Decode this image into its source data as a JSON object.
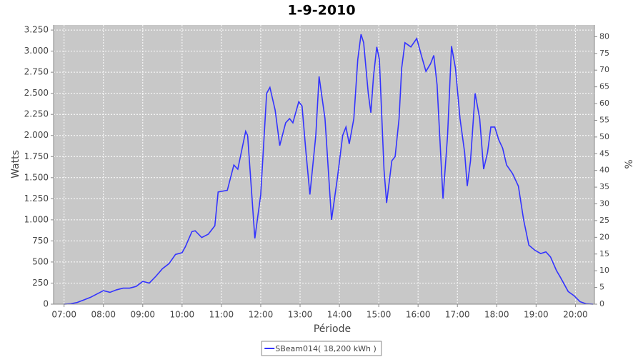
{
  "chart_data": {
    "type": "line",
    "title": "1-9-2010",
    "x_label": "Période",
    "y_label": "Watts",
    "y2_label": "%",
    "xlim": [
      "06:44",
      "20:29"
    ],
    "xticks": [
      "07:00",
      "08:00",
      "09:00",
      "10:00",
      "11:00",
      "12:00",
      "13:00",
      "14:00",
      "15:00",
      "16:00",
      "17:00",
      "18:00",
      "19:00",
      "20:00"
    ],
    "ylim": [
      0,
      3310
    ],
    "yticks": [
      0,
      250,
      500,
      750,
      {
        "value": 1000,
        "label": "1.000"
      },
      {
        "value": 1250,
        "label": "1.250"
      },
      {
        "value": 1500,
        "label": "1.500"
      },
      {
        "value": 1750,
        "label": "1.750"
      },
      {
        "value": 2000,
        "label": "2.000"
      },
      {
        "value": 2250,
        "label": "2.250"
      },
      {
        "value": 2500,
        "label": "2.500"
      },
      {
        "value": 2750,
        "label": "2.750"
      },
      {
        "value": 3000,
        "label": "3.000"
      },
      {
        "value": 3250,
        "label": "3.250"
      }
    ],
    "y2lim": [
      0,
      83.5
    ],
    "y2ticks": [
      0,
      5,
      10,
      15,
      20,
      25,
      30,
      35,
      40,
      45,
      50,
      55,
      60,
      65,
      70,
      75,
      80
    ],
    "grid": true,
    "legend": "bottom",
    "x": [
      "07:00",
      "07:10",
      "07:20",
      "07:30",
      "07:40",
      "07:50",
      "08:00",
      "08:10",
      "08:20",
      "08:30",
      "08:40",
      "08:50",
      "09:00",
      "09:10",
      "09:20",
      "09:30",
      "09:40",
      "09:50",
      "10:00",
      "10:05",
      "10:15",
      "10:20",
      "10:30",
      "10:40",
      "10:50",
      "10:55",
      "11:09",
      "11:19",
      "11:25",
      "11:37",
      "11:40",
      "11:51",
      "12:00",
      "12:09",
      "12:14",
      "12:22",
      "12:29",
      "12:38",
      "12:44",
      "12:49",
      "12:58",
      "13:03",
      "13:09",
      "13:15",
      "13:24",
      "13:29",
      "13:38",
      "13:48",
      "13:57",
      "14:05",
      "14:10",
      "14:15",
      "14:22",
      "14:28",
      "14:33",
      "14:37",
      "14:44",
      "14:48",
      "14:52",
      "14:57",
      "15:01",
      "15:08",
      "15:12",
      "15:20",
      "15:25",
      "15:31",
      "15:35",
      "15:40",
      "15:49",
      "15:58",
      "16:05",
      "16:12",
      "16:19",
      "16:24",
      "16:29",
      "16:35",
      "16:38",
      "16:45",
      "16:51",
      "16:57",
      "17:04",
      "17:11",
      "17:15",
      "17:20",
      "17:27",
      "17:34",
      "17:40",
      "17:46",
      "17:51",
      "17:57",
      "18:03",
      "18:09",
      "18:15",
      "18:24",
      "18:33",
      "18:41",
      "18:49",
      "18:58",
      "19:07",
      "19:15",
      "19:22",
      "19:31",
      "19:37",
      "19:49",
      "19:58",
      "20:07",
      "20:16",
      "20:27"
    ],
    "series": [
      {
        "name": "SBeam014( 18,200 kWh )",
        "color": "#3333ff",
        "values": [
          0,
          5,
          20,
          50,
          80,
          120,
          160,
          140,
          170,
          190,
          190,
          210,
          270,
          250,
          330,
          420,
          480,
          590,
          610,
          680,
          860,
          870,
          790,
          830,
          930,
          1330,
          1350,
          1650,
          1600,
          2050,
          2000,
          780,
          1300,
          2500,
          2570,
          2300,
          1880,
          2150,
          2200,
          2150,
          2400,
          2350,
          1800,
          1300,
          2000,
          2700,
          2200,
          1000,
          1500,
          2000,
          2100,
          1900,
          2200,
          2900,
          3200,
          3100,
          2500,
          2270,
          2700,
          3050,
          2900,
          1600,
          1200,
          1700,
          1750,
          2200,
          2800,
          3100,
          3050,
          3150,
          2950,
          2760,
          2850,
          2950,
          2600,
          1700,
          1250,
          2000,
          3060,
          2800,
          2200,
          1800,
          1400,
          1700,
          2500,
          2200,
          1600,
          1800,
          2100,
          2100,
          1950,
          1850,
          1650,
          1550,
          1400,
          1000,
          700,
          640,
          600,
          620,
          560,
          400,
          320,
          150,
          100,
          30,
          5,
          0
        ]
      }
    ]
  }
}
